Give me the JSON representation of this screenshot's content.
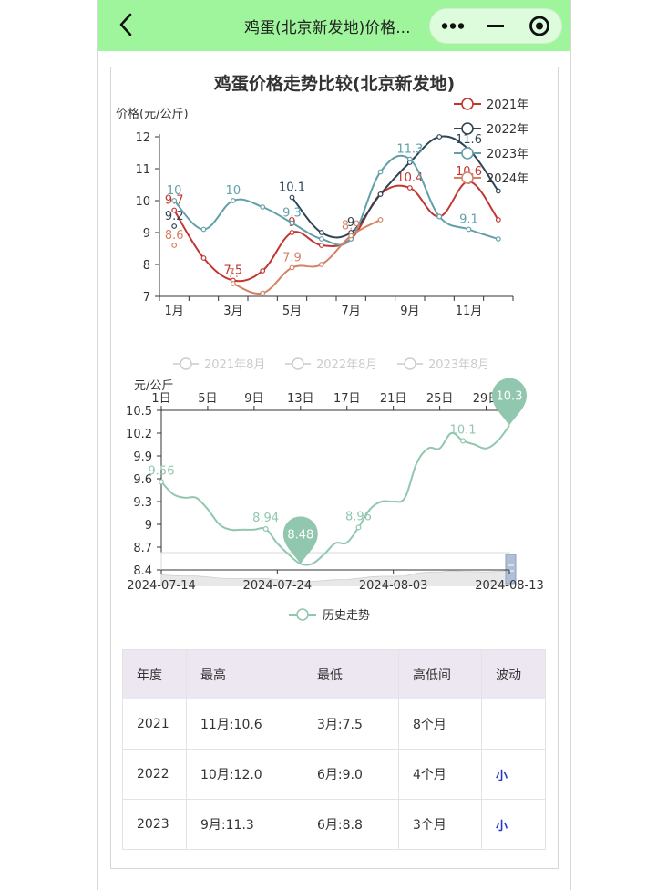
{
  "navbar": {
    "title": "鸡蛋(北京新发地)价格..."
  },
  "colors": {
    "y2021": "#c23531",
    "y2022": "#2f4554",
    "y2023": "#61a0a8",
    "y2024": "#d48265",
    "history": "#91c7ae",
    "navbar": "#9ef59b"
  },
  "chart_data": [
    {
      "type": "line",
      "title": "鸡蛋价格走势比较(北京新发地)",
      "ylabel": "价格(元/公斤)",
      "ylim": [
        7,
        12
      ],
      "yticks": [
        "7",
        "8",
        "9",
        "10",
        "11",
        "12"
      ],
      "x": [
        "1月",
        "2月",
        "3月",
        "4月",
        "5月",
        "6月",
        "7月",
        "8月",
        "9月",
        "10月",
        "11月",
        "12月"
      ],
      "xticks": [
        "1月",
        "3月",
        "5月",
        "7月",
        "9月",
        "11月"
      ],
      "legend_position": "top-right",
      "series": [
        {
          "name": "2021年",
          "values": [
            9.7,
            8.2,
            7.5,
            7.8,
            9.0,
            8.6,
            8.8,
            10.2,
            10.4,
            9.5,
            10.6,
            9.4
          ],
          "labels": [
            {
              "i": 0,
              "text": "9.7"
            },
            {
              "i": 2,
              "text": "7.5"
            },
            {
              "i": 4,
              "text": "9"
            },
            {
              "i": 8,
              "text": "10.4"
            },
            {
              "i": 10,
              "text": "10.6"
            }
          ]
        },
        {
          "name": "2022年",
          "values": [
            9.2,
            null,
            null,
            null,
            10.1,
            9.0,
            9.0,
            10.2,
            11.2,
            12.0,
            11.6,
            10.3
          ],
          "labels": [
            {
              "i": 0,
              "text": "9.2"
            },
            {
              "i": 4,
              "text": "10.1"
            },
            {
              "i": 6,
              "text": "9"
            },
            {
              "i": 10,
              "text": "11.6"
            }
          ]
        },
        {
          "name": "2023年",
          "values": [
            10.0,
            9.1,
            10.0,
            9.8,
            9.3,
            8.8,
            8.8,
            10.9,
            11.3,
            9.5,
            9.1,
            8.8
          ],
          "labels": [
            {
              "i": 0,
              "text": "10"
            },
            {
              "i": 2,
              "text": "10"
            },
            {
              "i": 4,
              "text": "9.3"
            },
            {
              "i": 8,
              "text": "11.3"
            },
            {
              "i": 10,
              "text": "9.1"
            }
          ]
        },
        {
          "name": "2024年",
          "values": [
            8.6,
            null,
            7.4,
            7.1,
            7.9,
            8.0,
            8.9,
            9.4,
            null,
            null,
            null,
            null
          ],
          "labels": [
            {
              "i": 0,
              "text": "8.6"
            },
            {
              "i": 2,
              "text": "7."
            },
            {
              "i": 4,
              "text": "7.9"
            },
            {
              "i": 6,
              "text": "8.9"
            }
          ]
        }
      ]
    },
    {
      "type": "line",
      "ylabel": "元/公斤",
      "ylim": [
        8.4,
        10.5
      ],
      "yticks": [
        "8.4",
        "8.7",
        "9",
        "9.3",
        "9.6",
        "9.9",
        "10.2",
        "10.5"
      ],
      "top_xticks": [
        "1日",
        "5日",
        "9日",
        "13日",
        "17日",
        "21日",
        "25日",
        "29日"
      ],
      "bottom_xticks": [
        "2024-07-14",
        "2024-07-24",
        "2024-08-03",
        "2024-08-13"
      ],
      "legend_top": [
        "2021年8月",
        "2022年8月",
        "2023年8月"
      ],
      "legend_bottom": "历史走势",
      "series": [
        {
          "name": "历史走势",
          "values": [
            9.56,
            9.4,
            9.35,
            9.35,
            9.2,
            9.0,
            8.93,
            8.93,
            8.93,
            8.94,
            8.75,
            8.6,
            8.48,
            8.48,
            8.6,
            8.75,
            8.76,
            8.96,
            9.2,
            9.3,
            9.3,
            9.35,
            9.8,
            10.0,
            10.0,
            10.2,
            10.1,
            10.05,
            10.0,
            10.1,
            10.3
          ],
          "labels": [
            {
              "i": 0,
              "text": "9.56"
            },
            {
              "i": 9,
              "text": "8.94"
            },
            {
              "i": 17,
              "text": "8.96"
            },
            {
              "i": 26,
              "text": "10.1"
            }
          ],
          "max": {
            "i": 30,
            "text": "10.3"
          },
          "min": {
            "i": 12,
            "text": "8.48"
          }
        }
      ]
    }
  ],
  "table": {
    "headers": [
      "年度",
      "最高",
      "最低",
      "高低间",
      "波动"
    ],
    "rows": [
      [
        "2021",
        "11月:10.6",
        "3月:7.5",
        "8个月",
        ""
      ],
      [
        "2022",
        "10月:12.0",
        "6月:9.0",
        "4个月",
        "小"
      ],
      [
        "2023",
        "9月:11.3",
        "6月:8.8",
        "3个月",
        "小"
      ]
    ]
  }
}
